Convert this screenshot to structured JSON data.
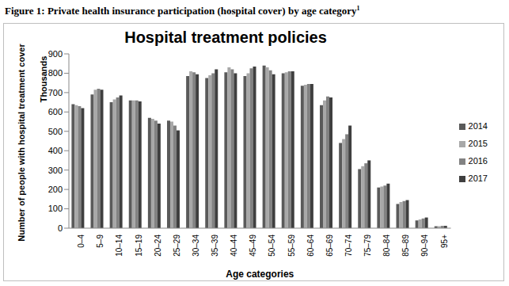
{
  "chart_data": {
    "type": "bar",
    "caption": "Figure 1: Private health insurance participation (hospital cover) by age category",
    "caption_note": "1",
    "title": "Hospital treatment policies",
    "y_label": "Number of people with hospital treatment cover",
    "y_unit": "Thousands",
    "x_label": "Age categories",
    "categories": [
      "0–4",
      "5–9",
      "10–14",
      "15–19",
      "20–24",
      "25–29",
      "30–34",
      "35–39",
      "40–44",
      "45–49",
      "50–54",
      "55–59",
      "60–64",
      "65–69",
      "70–74",
      "75–79",
      "80–84",
      "85–89",
      "90–94",
      "95+"
    ],
    "series": [
      {
        "name": "2014",
        "color": "#5a5a5a",
        "values": [
          640,
          690,
          650,
          660,
          570,
          555,
          785,
          775,
          805,
          785,
          840,
          800,
          735,
          635,
          440,
          305,
          210,
          125,
          40,
          10
        ]
      },
      {
        "name": "2015",
        "color": "#a8a8a8",
        "values": [
          635,
          715,
          665,
          660,
          565,
          550,
          810,
          790,
          830,
          800,
          830,
          805,
          740,
          660,
          460,
          320,
          215,
          135,
          45,
          10
        ]
      },
      {
        "name": "2016",
        "color": "#828282",
        "values": [
          630,
          720,
          675,
          660,
          555,
          530,
          805,
          800,
          820,
          825,
          815,
          810,
          745,
          680,
          485,
          335,
          220,
          140,
          50,
          12
        ]
      },
      {
        "name": "2017",
        "color": "#3f3f3f",
        "values": [
          620,
          715,
          685,
          655,
          540,
          505,
          795,
          820,
          800,
          835,
          795,
          810,
          745,
          675,
          530,
          350,
          230,
          145,
          55,
          12
        ]
      }
    ],
    "ylim": [
      0,
      900
    ],
    "yticks": [
      0,
      100,
      200,
      300,
      400,
      500,
      600,
      700,
      800,
      900
    ],
    "grid": false,
    "legend": "right"
  }
}
